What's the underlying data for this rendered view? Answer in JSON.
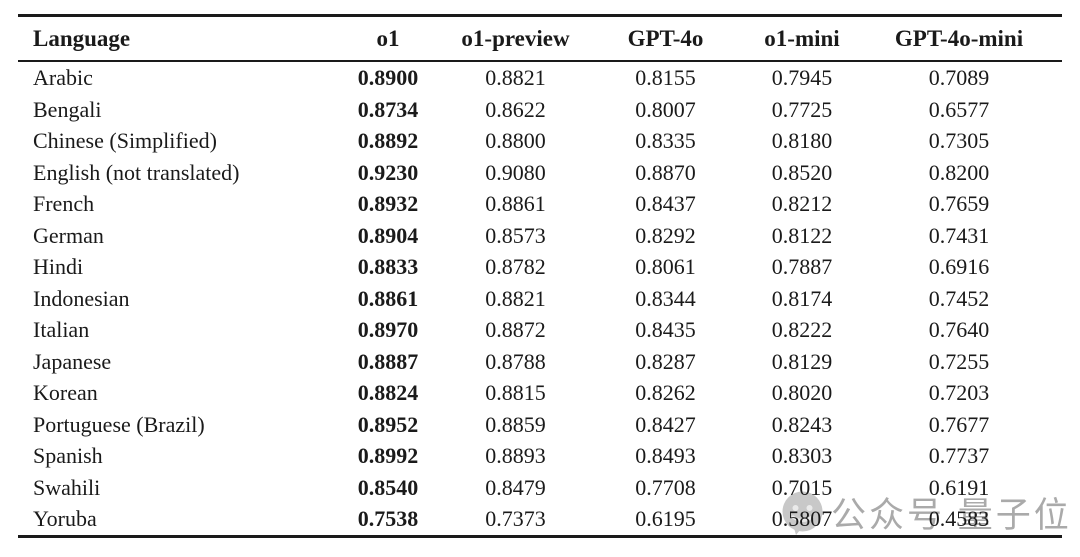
{
  "table": {
    "columns": [
      "Language",
      "o1",
      "o1-preview",
      "GPT-4o",
      "o1-mini",
      "GPT-4o-mini"
    ],
    "bold_column": "o1",
    "rows": [
      {
        "language": "Arabic",
        "values": [
          "0.8900",
          "0.8821",
          "0.8155",
          "0.7945",
          "0.7089"
        ]
      },
      {
        "language": "Bengali",
        "values": [
          "0.8734",
          "0.8622",
          "0.8007",
          "0.7725",
          "0.6577"
        ]
      },
      {
        "language": "Chinese (Simplified)",
        "values": [
          "0.8892",
          "0.8800",
          "0.8335",
          "0.8180",
          "0.7305"
        ]
      },
      {
        "language": "English (not translated)",
        "values": [
          "0.9230",
          "0.9080",
          "0.8870",
          "0.8520",
          "0.8200"
        ]
      },
      {
        "language": "French",
        "values": [
          "0.8932",
          "0.8861",
          "0.8437",
          "0.8212",
          "0.7659"
        ]
      },
      {
        "language": "German",
        "values": [
          "0.8904",
          "0.8573",
          "0.8292",
          "0.8122",
          "0.7431"
        ]
      },
      {
        "language": "Hindi",
        "values": [
          "0.8833",
          "0.8782",
          "0.8061",
          "0.7887",
          "0.6916"
        ]
      },
      {
        "language": "Indonesian",
        "values": [
          "0.8861",
          "0.8821",
          "0.8344",
          "0.8174",
          "0.7452"
        ]
      },
      {
        "language": "Italian",
        "values": [
          "0.8970",
          "0.8872",
          "0.8435",
          "0.8222",
          "0.7640"
        ]
      },
      {
        "language": "Japanese",
        "values": [
          "0.8887",
          "0.8788",
          "0.8287",
          "0.8129",
          "0.7255"
        ]
      },
      {
        "language": "Korean",
        "values": [
          "0.8824",
          "0.8815",
          "0.8262",
          "0.8020",
          "0.7203"
        ]
      },
      {
        "language": "Portuguese (Brazil)",
        "values": [
          "0.8952",
          "0.8859",
          "0.8427",
          "0.8243",
          "0.7677"
        ]
      },
      {
        "language": "Spanish",
        "values": [
          "0.8992",
          "0.8893",
          "0.8493",
          "0.8303",
          "0.7737"
        ]
      },
      {
        "language": "Swahili",
        "values": [
          "0.8540",
          "0.8479",
          "0.7708",
          "0.7015",
          "0.6191"
        ]
      },
      {
        "language": "Yoruba",
        "values": [
          "0.7538",
          "0.7373",
          "0.6195",
          "0.5807",
          "0.4583"
        ]
      }
    ]
  },
  "watermark": {
    "logo": "qbitai-logo",
    "text": "公众号 量子位",
    "color": "#9c9c9c"
  },
  "colors": {
    "background": "#ffffff",
    "text": "#1a1a1a",
    "rule": "#1a1a1a"
  }
}
